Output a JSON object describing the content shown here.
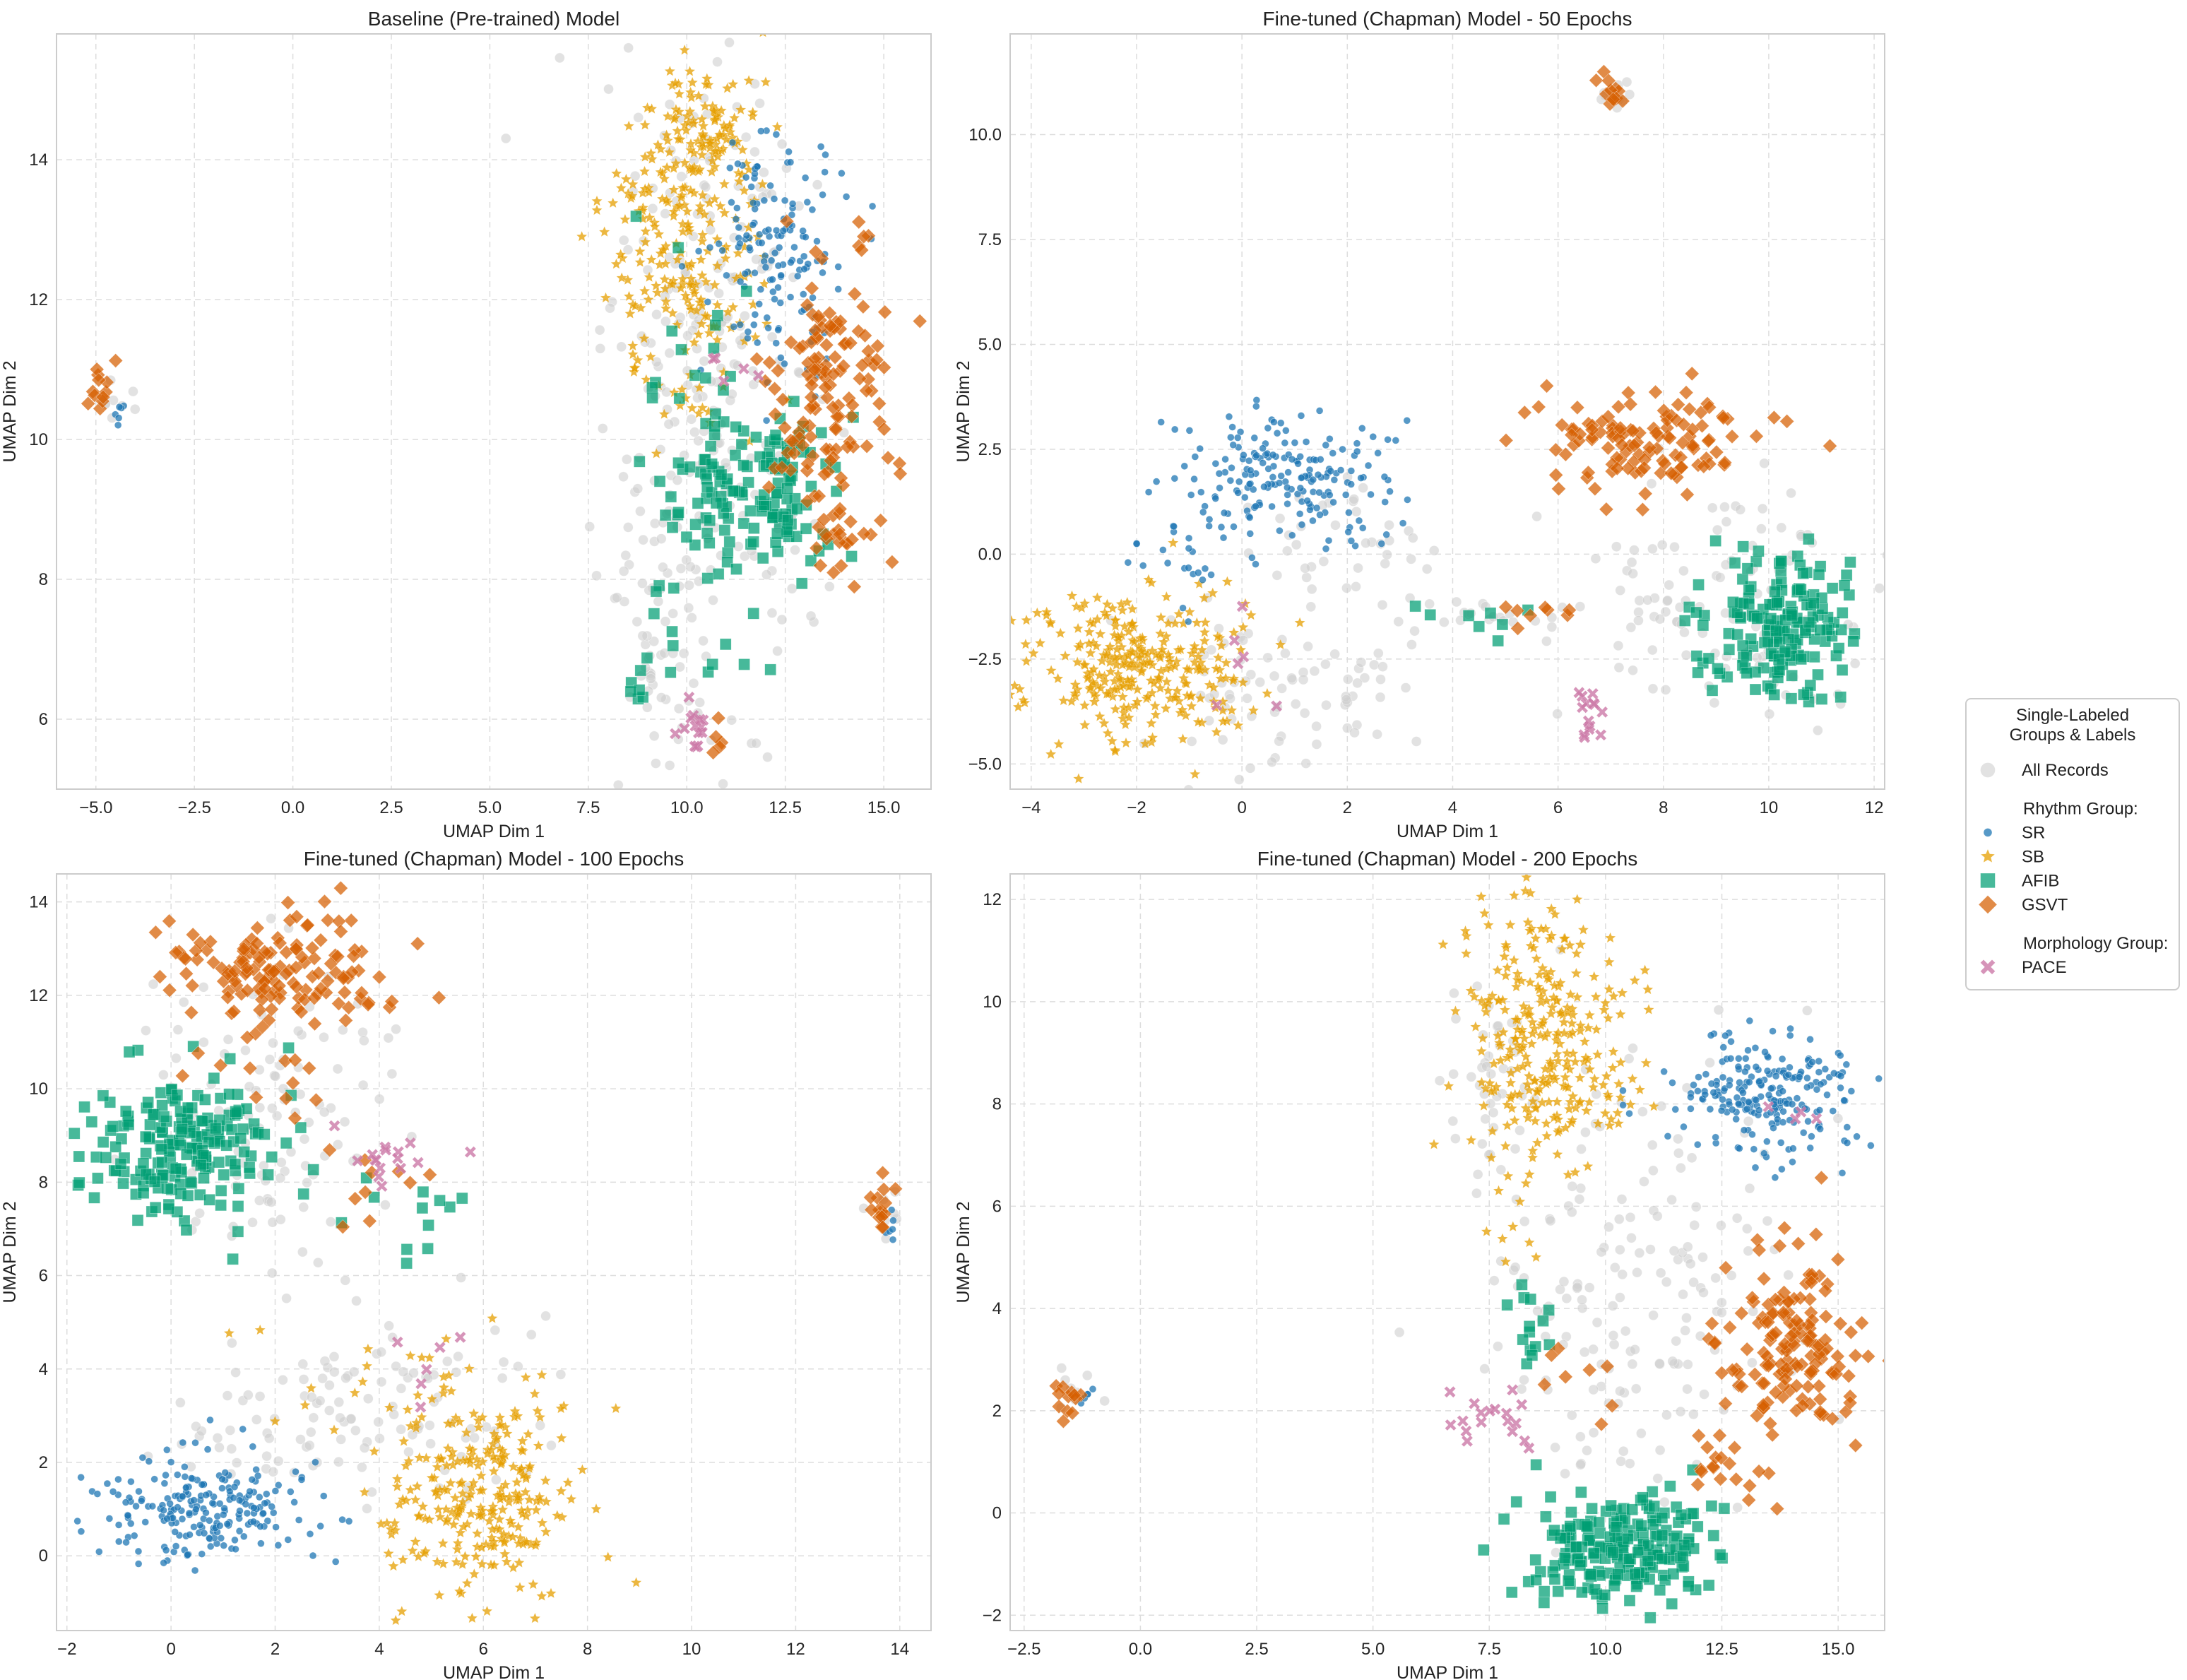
{
  "chart_data": [
    {
      "type": "scatter",
      "title": "Baseline (Pre-trained) Model",
      "xlabel": "UMAP Dim 1",
      "ylabel": "UMAP Dim 2",
      "xlim": [
        -6.0,
        16.2
      ],
      "ylim": [
        5.0,
        15.8
      ],
      "xticks": [
        -5.0,
        -2.5,
        0.0,
        2.5,
        5.0,
        7.5,
        10.0,
        12.5,
        15.0
      ],
      "xtick_labels": [
        "−5.0",
        "−2.5",
        "0.0",
        "2.5",
        "5.0",
        "7.5",
        "10.0",
        "12.5",
        "15.0"
      ],
      "yticks": [
        6,
        8,
        10,
        12,
        14
      ],
      "ytick_labels": [
        "6",
        "8",
        "10",
        "12",
        "14"
      ],
      "grid": true,
      "clusters": [
        {
          "series": "All Records",
          "cx": 10.6,
          "cy": 10.5,
          "sx": 1.3,
          "sy": 2.6,
          "n": 260
        },
        {
          "series": "All Records",
          "cx": 9.3,
          "cy": 7.0,
          "sx": 0.5,
          "sy": 0.9,
          "n": 50
        },
        {
          "series": "All Records",
          "cx": -4.6,
          "cy": 10.6,
          "sx": 0.3,
          "sy": 0.2,
          "n": 10
        },
        {
          "series": "SB",
          "cx": 9.9,
          "cy": 12.8,
          "sx": 1.0,
          "sy": 1.2,
          "n": 240
        },
        {
          "series": "SB",
          "cx": 10.6,
          "cy": 14.5,
          "sx": 0.6,
          "sy": 0.45,
          "n": 80
        },
        {
          "series": "SR",
          "cx": 12.2,
          "cy": 12.6,
          "sx": 0.8,
          "sy": 0.8,
          "n": 150
        },
        {
          "series": "SR",
          "cx": -4.4,
          "cy": 10.4,
          "sx": 0.1,
          "sy": 0.1,
          "n": 6
        },
        {
          "series": "AFIB",
          "cx": 12.0,
          "cy": 9.3,
          "sx": 0.9,
          "sy": 0.6,
          "n": 130
        },
        {
          "series": "AFIB",
          "cx": 10.3,
          "cy": 11.0,
          "sx": 0.9,
          "sy": 1.5,
          "n": 30
        },
        {
          "series": "AFIB",
          "cx": 10.5,
          "cy": 7.4,
          "sx": 0.9,
          "sy": 0.6,
          "n": 15
        },
        {
          "series": "AFIB",
          "cx": 8.9,
          "cy": 6.5,
          "sx": 0.3,
          "sy": 0.3,
          "n": 6
        },
        {
          "series": "GSVT",
          "cx": 13.6,
          "cy": 10.8,
          "sx": 0.75,
          "sy": 1.0,
          "n": 130
        },
        {
          "series": "GSVT",
          "cx": 13.8,
          "cy": 8.6,
          "sx": 0.4,
          "sy": 0.4,
          "n": 20
        },
        {
          "series": "GSVT",
          "cx": -4.8,
          "cy": 10.7,
          "sx": 0.2,
          "sy": 0.2,
          "n": 12
        },
        {
          "series": "GSVT",
          "cx": 10.7,
          "cy": 5.7,
          "sx": 0.2,
          "sy": 0.15,
          "n": 5
        },
        {
          "series": "GSVT",
          "cx": 14.5,
          "cy": 13.0,
          "sx": 0.1,
          "sy": 0.15,
          "n": 4
        },
        {
          "series": "PACE",
          "cx": 10.2,
          "cy": 6.0,
          "sx": 0.2,
          "sy": 0.3,
          "n": 14
        },
        {
          "series": "PACE",
          "cx": 10.4,
          "cy": 10.9,
          "sx": 0.5,
          "sy": 0.2,
          "n": 5
        }
      ]
    },
    {
      "type": "scatter",
      "title": "Fine-tuned (Chapman) Model - 50 Epochs",
      "xlabel": "UMAP Dim 1",
      "ylabel": "UMAP Dim 2",
      "xlim": [
        -4.4,
        12.2
      ],
      "ylim": [
        -5.6,
        12.4
      ],
      "xticks": [
        -4,
        -2,
        0,
        2,
        4,
        6,
        8,
        10,
        12
      ],
      "xtick_labels": [
        "−4",
        "−2",
        "0",
        "2",
        "4",
        "6",
        "8",
        "10",
        "12"
      ],
      "yticks": [
        -5.0,
        -2.5,
        0.0,
        2.5,
        5.0,
        7.5,
        10.0
      ],
      "ytick_labels": [
        "−5.0",
        "−2.5",
        "0.0",
        "2.5",
        "5.0",
        "7.5",
        "10.0"
      ],
      "grid": true,
      "clusters": [
        {
          "series": "All Records",
          "cx": 0.6,
          "cy": -3.2,
          "sx": 1.3,
          "sy": 1.0,
          "n": 80
        },
        {
          "series": "All Records",
          "cx": 2.0,
          "cy": 0.5,
          "sx": 0.8,
          "sy": 0.8,
          "n": 40
        },
        {
          "series": "All Records",
          "cx": 9.0,
          "cy": -1.0,
          "sx": 1.5,
          "sy": 1.5,
          "n": 110
        },
        {
          "series": "All Records",
          "cx": 4.8,
          "cy": -1.5,
          "sx": 0.8,
          "sy": 0.3,
          "n": 20
        },
        {
          "series": "All Records",
          "cx": 7.1,
          "cy": 10.8,
          "sx": 0.25,
          "sy": 0.3,
          "n": 10
        },
        {
          "series": "SB",
          "cx": -2.0,
          "cy": -2.7,
          "sx": 1.1,
          "sy": 1.0,
          "n": 300
        },
        {
          "series": "SR",
          "cx": 0.9,
          "cy": 1.9,
          "sx": 0.9,
          "sy": 0.7,
          "n": 190
        },
        {
          "series": "SR",
          "cx": -1.0,
          "cy": 0.0,
          "sx": 0.6,
          "sy": 0.6,
          "n": 25
        },
        {
          "series": "AFIB",
          "cx": 10.2,
          "cy": -1.7,
          "sx": 0.7,
          "sy": 0.9,
          "n": 170
        },
        {
          "series": "AFIB",
          "cx": 4.6,
          "cy": -1.6,
          "sx": 0.7,
          "sy": 0.25,
          "n": 8
        },
        {
          "series": "GSVT",
          "cx": 7.8,
          "cy": 2.6,
          "sx": 1.1,
          "sy": 0.6,
          "n": 120
        },
        {
          "series": "GSVT",
          "cx": 7.0,
          "cy": 11.0,
          "sx": 0.15,
          "sy": 0.25,
          "n": 12
        },
        {
          "series": "GSVT",
          "cx": 5.6,
          "cy": -1.3,
          "sx": 0.5,
          "sy": 0.2,
          "n": 8
        },
        {
          "series": "PACE",
          "cx": 6.6,
          "cy": -3.8,
          "sx": 0.2,
          "sy": 0.35,
          "n": 14
        },
        {
          "series": "PACE",
          "cx": 0.0,
          "cy": -3.0,
          "sx": 0.3,
          "sy": 0.6,
          "n": 6
        }
      ]
    },
    {
      "type": "scatter",
      "title": "Fine-tuned (Chapman) Model - 100 Epochs",
      "xlabel": "UMAP Dim 1",
      "ylabel": "UMAP Dim 2",
      "xlim": [
        -2.2,
        14.6
      ],
      "ylim": [
        -1.6,
        14.6
      ],
      "xticks": [
        -2,
        0,
        2,
        4,
        6,
        8,
        10,
        12,
        14
      ],
      "xtick_labels": [
        "−2",
        "0",
        "2",
        "4",
        "6",
        "8",
        "10",
        "12",
        "14"
      ],
      "yticks": [
        0,
        2,
        4,
        6,
        8,
        10,
        12,
        14
      ],
      "ytick_labels": [
        "0",
        "2",
        "4",
        "6",
        "8",
        "10",
        "12",
        "14"
      ],
      "grid": true,
      "clusters": [
        {
          "series": "All Records",
          "cx": 2.0,
          "cy": 9.5,
          "sx": 1.3,
          "sy": 1.6,
          "n": 110
        },
        {
          "series": "All Records",
          "cx": 4.5,
          "cy": 3.3,
          "sx": 1.5,
          "sy": 1.0,
          "n": 90
        },
        {
          "series": "All Records",
          "cx": 1.5,
          "cy": 2.5,
          "sx": 1.0,
          "sy": 0.6,
          "n": 30
        },
        {
          "series": "All Records",
          "cx": 13.7,
          "cy": 7.3,
          "sx": 0.2,
          "sy": 0.3,
          "n": 8
        },
        {
          "series": "SR",
          "cx": 0.6,
          "cy": 1.0,
          "sx": 1.0,
          "sy": 0.6,
          "n": 220
        },
        {
          "series": "SR",
          "cx": 13.9,
          "cy": 7.1,
          "sx": 0.1,
          "sy": 0.15,
          "n": 6
        },
        {
          "series": "SB",
          "cx": 5.9,
          "cy": 1.3,
          "sx": 0.9,
          "sy": 1.0,
          "n": 270
        },
        {
          "series": "SB",
          "cx": 3.8,
          "cy": 4.0,
          "sx": 1.0,
          "sy": 0.8,
          "n": 20
        },
        {
          "series": "AFIB",
          "cx": 0.2,
          "cy": 8.6,
          "sx": 0.9,
          "sy": 0.8,
          "n": 190
        },
        {
          "series": "AFIB",
          "cx": 4.8,
          "cy": 7.3,
          "sx": 0.4,
          "sy": 0.5,
          "n": 10
        },
        {
          "series": "GSVT",
          "cx": 2.3,
          "cy": 12.5,
          "sx": 1.1,
          "sy": 0.6,
          "n": 140
        },
        {
          "series": "GSVT",
          "cx": 13.7,
          "cy": 7.5,
          "sx": 0.15,
          "sy": 0.3,
          "n": 14
        },
        {
          "series": "GSVT",
          "cx": 1.5,
          "cy": 10.5,
          "sx": 0.8,
          "sy": 0.6,
          "n": 14
        },
        {
          "series": "GSVT",
          "cx": 4.0,
          "cy": 8.2,
          "sx": 0.6,
          "sy": 0.6,
          "n": 10
        },
        {
          "series": "PACE",
          "cx": 4.2,
          "cy": 8.6,
          "sx": 0.6,
          "sy": 0.3,
          "n": 16
        },
        {
          "series": "PACE",
          "cx": 5.0,
          "cy": 4.3,
          "sx": 0.4,
          "sy": 0.5,
          "n": 6
        }
      ]
    },
    {
      "type": "scatter",
      "title": "Fine-tuned (Chapman) Model - 200 Epochs",
      "xlabel": "UMAP Dim 1",
      "ylabel": "UMAP Dim 2",
      "xlim": [
        -2.8,
        16.0
      ],
      "ylim": [
        -2.3,
        12.5
      ],
      "xticks": [
        -2.5,
        0.0,
        2.5,
        5.0,
        7.5,
        10.0,
        12.5,
        15.0
      ],
      "xtick_labels": [
        "−2.5",
        "0.0",
        "2.5",
        "5.0",
        "7.5",
        "10.0",
        "12.5",
        "15.0"
      ],
      "yticks": [
        -2,
        0,
        2,
        4,
        6,
        8,
        10,
        12
      ],
      "ytick_labels": [
        "−2",
        "0",
        "2",
        "4",
        "6",
        "8",
        "10",
        "12"
      ],
      "grid": true,
      "clusters": [
        {
          "series": "All Records",
          "cx": 10.5,
          "cy": 4.5,
          "sx": 1.6,
          "sy": 2.2,
          "n": 180
        },
        {
          "series": "All Records",
          "cx": 7.5,
          "cy": 8.5,
          "sx": 0.5,
          "sy": 1.2,
          "n": 40
        },
        {
          "series": "All Records",
          "cx": -1.5,
          "cy": 2.4,
          "sx": 0.3,
          "sy": 0.2,
          "n": 8
        },
        {
          "series": "SB",
          "cx": 8.8,
          "cy": 9.3,
          "sx": 0.9,
          "sy": 1.3,
          "n": 280
        },
        {
          "series": "SB",
          "cx": 8.0,
          "cy": 5.5,
          "sx": 0.4,
          "sy": 0.8,
          "n": 10
        },
        {
          "series": "SR",
          "cx": 13.5,
          "cy": 8.2,
          "sx": 1.0,
          "sy": 0.6,
          "n": 220
        },
        {
          "series": "SR",
          "cx": -1.1,
          "cy": 2.3,
          "sx": 0.1,
          "sy": 0.1,
          "n": 5
        },
        {
          "series": "AFIB",
          "cx": 10.3,
          "cy": -0.7,
          "sx": 1.0,
          "sy": 0.55,
          "n": 200
        },
        {
          "series": "AFIB",
          "cx": 8.3,
          "cy": 3.7,
          "sx": 0.3,
          "sy": 0.5,
          "n": 14
        },
        {
          "series": "GSVT",
          "cx": 14.0,
          "cy": 3.3,
          "sx": 0.8,
          "sy": 0.9,
          "n": 150
        },
        {
          "series": "GSVT",
          "cx": -1.6,
          "cy": 2.3,
          "sx": 0.2,
          "sy": 0.2,
          "n": 12
        },
        {
          "series": "GSVT",
          "cx": 12.5,
          "cy": 1.0,
          "sx": 0.4,
          "sy": 0.7,
          "n": 16
        },
        {
          "series": "GSVT",
          "cx": 9.5,
          "cy": 2.6,
          "sx": 0.6,
          "sy": 0.6,
          "n": 8
        },
        {
          "series": "PACE",
          "cx": 7.8,
          "cy": 1.8,
          "sx": 0.6,
          "sy": 0.3,
          "n": 18
        },
        {
          "series": "PACE",
          "cx": 14.2,
          "cy": 7.8,
          "sx": 0.4,
          "sy": 0.1,
          "n": 4
        }
      ]
    }
  ],
  "legend": {
    "title": "Single-Labeled\nGroups & Labels",
    "entries": [
      {
        "kind": "item",
        "series": "All Records",
        "label": "All Records"
      },
      {
        "kind": "spacer"
      },
      {
        "kind": "header",
        "label": "Rhythm Group:"
      },
      {
        "kind": "item",
        "series": "SR",
        "label": "SR"
      },
      {
        "kind": "item",
        "series": "SB",
        "label": "SB"
      },
      {
        "kind": "item",
        "series": "AFIB",
        "label": "AFIB"
      },
      {
        "kind": "item",
        "series": "GSVT",
        "label": "GSVT"
      },
      {
        "kind": "spacer"
      },
      {
        "kind": "header",
        "label": "Morphology Group:"
      },
      {
        "kind": "item",
        "series": "PACE",
        "label": "PACE"
      }
    ]
  },
  "series_styles": {
    "All Records": {
      "color": "#cfcfcf",
      "marker": "circle",
      "size": 7,
      "opacity": 0.6
    },
    "SR": {
      "color": "#1f77b4",
      "marker": "circle",
      "size": 5,
      "opacity": 0.75
    },
    "SB": {
      "color": "#e69f00",
      "marker": "star",
      "size": 8,
      "opacity": 0.75
    },
    "AFIB": {
      "color": "#009e73",
      "marker": "square",
      "size": 8,
      "opacity": 0.72
    },
    "GSVT": {
      "color": "#d55e00",
      "marker": "diamond",
      "size": 10,
      "opacity": 0.72
    },
    "PACE": {
      "color": "#cc79a7",
      "marker": "cross",
      "size": 8,
      "opacity": 0.8
    }
  },
  "draw_order": [
    "All Records",
    "SB",
    "SR",
    "AFIB",
    "GSVT",
    "PACE"
  ]
}
